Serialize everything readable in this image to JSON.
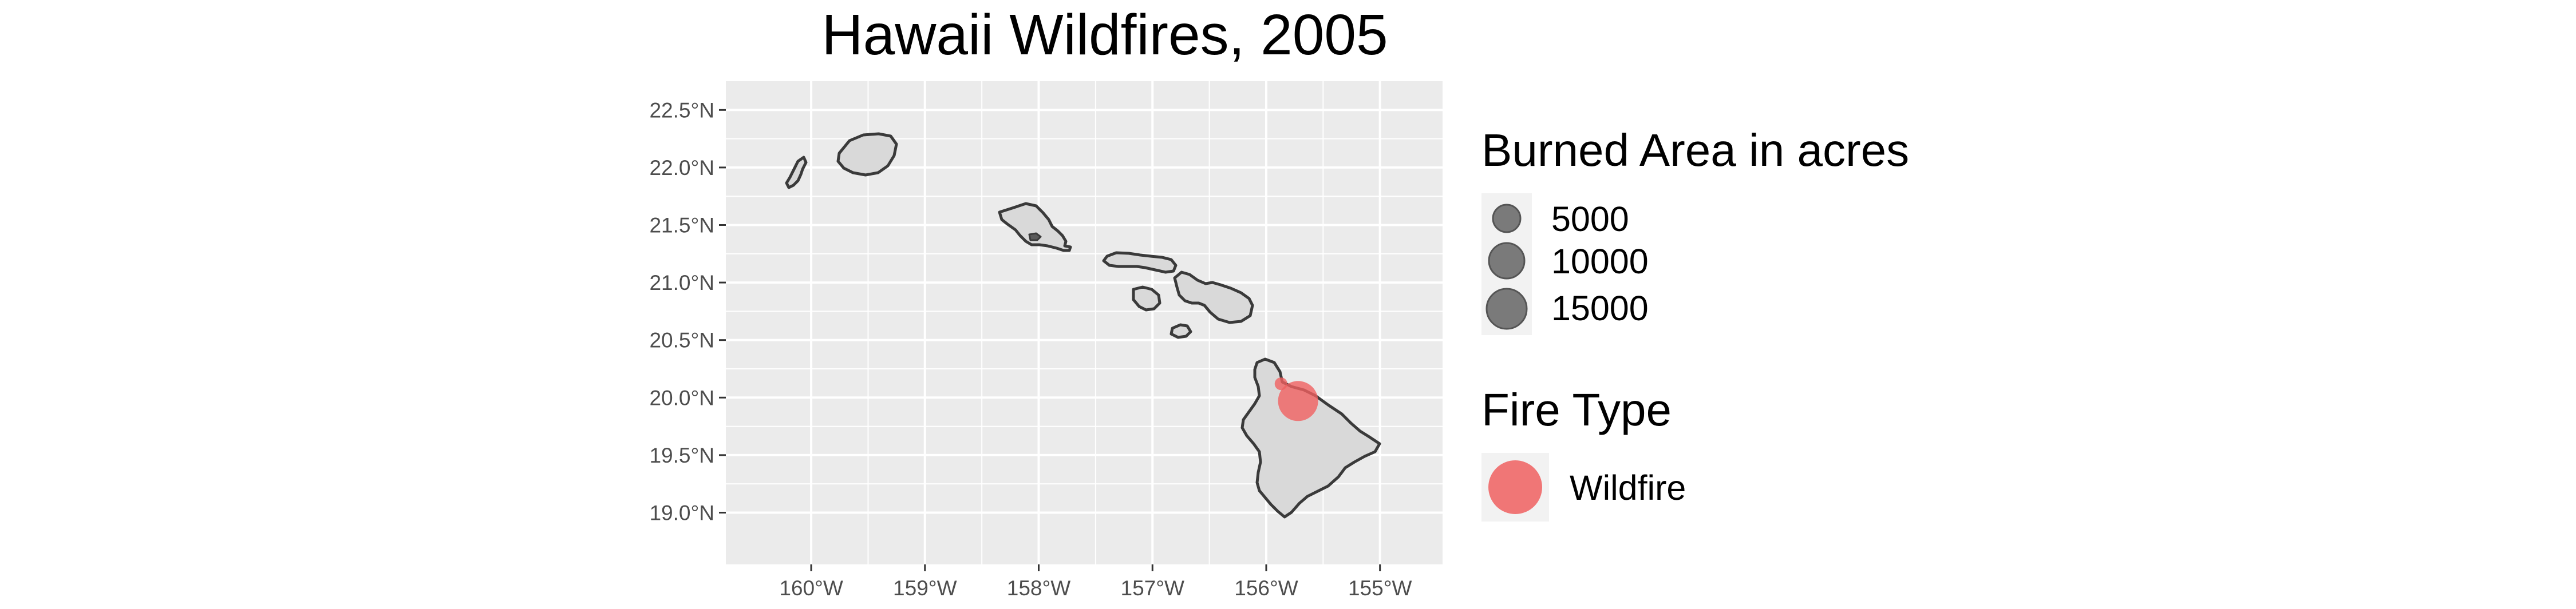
{
  "title": "Hawaii Wildfires, 2005",
  "x_ticks": [
    "160°W",
    "159°W",
    "158°W",
    "157°W",
    "156°W",
    "155°W"
  ],
  "y_ticks": [
    "22.5°N",
    "22.0°N",
    "21.5°N",
    "21.0°N",
    "20.5°N",
    "20.0°N",
    "19.5°N",
    "19.0°N"
  ],
  "legend_size": {
    "title": "Burned Area in acres",
    "entries": [
      {
        "label": "5000",
        "value": 5000
      },
      {
        "label": "10000",
        "value": 10000
      },
      {
        "label": "15000",
        "value": 15000
      }
    ]
  },
  "legend_color": {
    "title": "Fire Type",
    "entries": [
      {
        "label": "Wildfire",
        "color": "#f06060"
      }
    ]
  },
  "chart_data": {
    "type": "scatter",
    "title": "Hawaii Wildfires, 2005",
    "xlabel": "",
    "ylabel": "",
    "xlim": [
      -160.75,
      -154.45
    ],
    "ylim": [
      18.55,
      22.75
    ],
    "grid": true,
    "legend_position": "right",
    "series": [
      {
        "name": "Wildfire",
        "color": "#f06060",
        "points": [
          {
            "lon": -155.72,
            "lat": 19.97,
            "acres": 15000
          },
          {
            "lon": -155.87,
            "lat": 20.12,
            "acres": 1500
          }
        ]
      }
    ]
  },
  "colors": {
    "panel_background": "#ebebeb",
    "gridline": "#ffffff",
    "island_fill": "#d9d9d9",
    "island_outline": "#3a3a3a",
    "legend_key_background": "#f2f2f2",
    "size_key_fill": "#7a7a7a"
  }
}
